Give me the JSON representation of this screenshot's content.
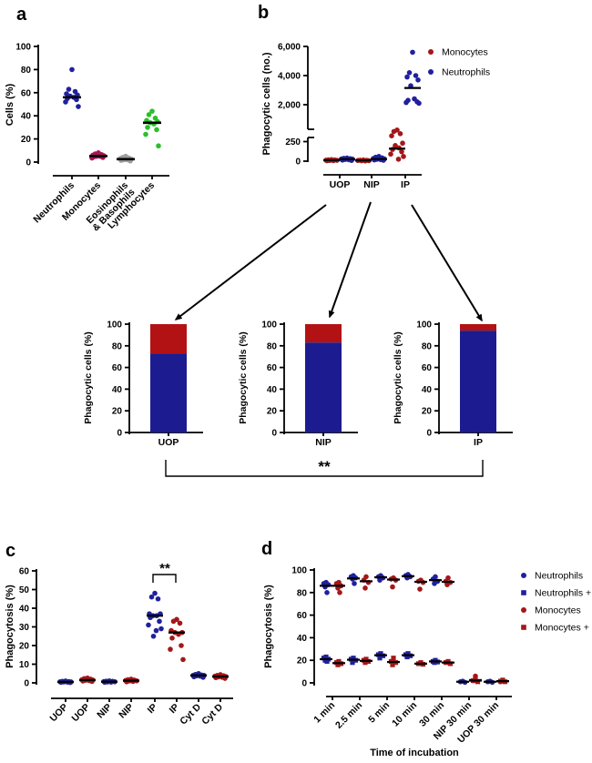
{
  "figure_labels": {
    "a": "a",
    "b": "b",
    "c": "c",
    "d": "d"
  },
  "colors": {
    "blue": "#20209e",
    "red": "#a41719",
    "magenta": "#aa1457",
    "gray": "#9d9d9d",
    "green": "#2abf2a",
    "bar_blue": "#1c1c90",
    "bar_red": "#b31215",
    "black": "#000000"
  },
  "chart_data": [
    {
      "id": "a",
      "type": "scatter",
      "ylabel": "Cells (%)",
      "ylim": [
        0,
        100
      ],
      "yticks": [
        0,
        20,
        40,
        60,
        80,
        100
      ],
      "categories": [
        "Neutrophils",
        "Monocytes",
        "Eosinophils\n& Basophils",
        "Lymphocytes"
      ],
      "groups": [
        {
          "label": "Neutrophils",
          "color": "blue",
          "marker": "circle",
          "values": [
            80,
            63,
            61,
            59,
            58,
            57,
            56,
            55,
            54,
            52,
            48
          ],
          "median": 56
        },
        {
          "label": "Monocytes",
          "color": "magenta",
          "marker": "circle",
          "values": [
            8,
            7,
            6.5,
            6,
            5.5,
            5,
            5,
            4.5,
            4,
            3.5
          ],
          "median": 5.2
        },
        {
          "label": "Eosinophils & Basophils",
          "color": "gray",
          "marker": "circle",
          "values": [
            5,
            4,
            3.5,
            3,
            2.5,
            2,
            2,
            1.5,
            1
          ],
          "median": 2.5
        },
        {
          "label": "Lymphocytes",
          "color": "green",
          "marker": "circle",
          "values": [
            44,
            41,
            38,
            36,
            35,
            34,
            33,
            30,
            28,
            24,
            14
          ],
          "median": 34
        }
      ]
    },
    {
      "id": "b",
      "type": "scatter_broken_axis",
      "ylabel": "Phagocytic cells (no.)",
      "yticks_upper": [
        {
          "v": 2000,
          "label": "2,000"
        },
        {
          "v": 4000,
          "label": "4,000"
        },
        {
          "v": 6000,
          "label": "6,000"
        }
      ],
      "yticks_lower": [
        {
          "v": 0,
          "label": "0"
        },
        {
          "v": 250,
          "label": "250"
        }
      ],
      "categories": [
        "UOP",
        "NIP",
        "IP"
      ],
      "legend": [
        {
          "label": "Monocytes",
          "color": "red",
          "marker": "circle"
        },
        {
          "label": "Neutrophils",
          "color": "blue",
          "marker": "circle"
        }
      ],
      "groups": [
        {
          "category": "UOP",
          "series": "Monocytes",
          "color": "red",
          "values": [
            5,
            7,
            9,
            11,
            13,
            15,
            17,
            20
          ],
          "median": 12
        },
        {
          "category": "UOP",
          "series": "Neutrophils",
          "color": "blue",
          "values": [
            10,
            14,
            18,
            22,
            25,
            28,
            32,
            36,
            40
          ],
          "median": 25
        },
        {
          "category": "NIP",
          "series": "Monocytes",
          "color": "red",
          "values": [
            3,
            5,
            7,
            9,
            11,
            13,
            15
          ],
          "median": 9
        },
        {
          "category": "NIP",
          "series": "Neutrophils",
          "color": "blue",
          "values": [
            12,
            16,
            20,
            24,
            28,
            34,
            42,
            50,
            60
          ],
          "median": 27
        },
        {
          "category": "IP",
          "series": "Monocytes",
          "color": "red",
          "values": [
            25,
            60,
            90,
            120,
            150,
            170,
            200,
            230,
            350,
            500,
            650,
            750
          ],
          "median": 160
        },
        {
          "category": "IP",
          "series": "Neutrophils",
          "color": "blue",
          "values": [
            2100,
            2150,
            2200,
            2300,
            2400,
            3300,
            3700,
            3900,
            4000,
            4200,
            5600
          ],
          "median": 3150
        }
      ]
    },
    {
      "id": "bars",
      "type": "stacked_bar",
      "ylabel": "Phagocytic cells (%)",
      "ylim": [
        0,
        100
      ],
      "yticks": [
        0,
        20,
        40,
        60,
        80,
        100
      ],
      "categories": [
        "UOP",
        "NIP",
        "IP"
      ],
      "series": [
        {
          "name": "Neutrophils",
          "color": "bar_blue",
          "values": [
            73,
            83,
            94
          ]
        },
        {
          "name": "Monocytes",
          "color": "bar_red",
          "values": [
            27,
            17,
            6
          ]
        }
      ],
      "significance": {
        "label": "**",
        "between": [
          "UOP",
          "IP"
        ]
      }
    },
    {
      "id": "c",
      "type": "scatter",
      "ylabel": "Phagocytosis (%)",
      "ylim": [
        0,
        60
      ],
      "yticks": [
        0,
        10,
        20,
        30,
        40,
        50,
        60
      ],
      "categories": [
        "UOP",
        "UOP",
        "NIP",
        "NIP",
        "IP",
        "IP",
        "Cyt D",
        "Cyt D"
      ],
      "significance": {
        "label": "**",
        "between": [
          "IP",
          "IP"
        ]
      },
      "groups": [
        {
          "category": "UOP",
          "color": "blue",
          "marker": "circle",
          "values": [
            0.2,
            0.3,
            0.4,
            0.5,
            0.5,
            0.6,
            0.7,
            0.8,
            1
          ],
          "median": 0.5
        },
        {
          "category": "UOP",
          "color": "red",
          "marker": "circle",
          "values": [
            0.8,
            1,
            1.2,
            1.4,
            1.5,
            1.7,
            2,
            2.3,
            2.6
          ],
          "median": 1.5
        },
        {
          "category": "NIP",
          "color": "blue",
          "marker": "circle",
          "values": [
            0.3,
            0.4,
            0.5,
            0.6,
            0.7,
            0.8,
            0.9,
            1.1
          ],
          "median": 0.65
        },
        {
          "category": "NIP",
          "color": "red",
          "marker": "circle",
          "values": [
            0.6,
            0.8,
            1,
            1.1,
            1.3,
            1.5,
            1.7,
            2
          ],
          "median": 1.2
        },
        {
          "category": "IP",
          "color": "blue",
          "marker": "circle",
          "values": [
            25,
            28,
            29,
            31,
            33,
            35,
            36,
            36,
            37,
            37,
            45,
            46,
            48
          ],
          "median": 36
        },
        {
          "category": "IP",
          "color": "red",
          "marker": "circle",
          "values": [
            12.5,
            18,
            20,
            24,
            26,
            27,
            27,
            28,
            32,
            33,
            34
          ],
          "median": 27
        },
        {
          "category": "Cyt D",
          "color": "blue",
          "marker": "circle",
          "values": [
            3,
            3.3,
            3.6,
            3.8,
            4,
            4,
            4.2,
            4.5,
            5
          ],
          "median": 4
        },
        {
          "category": "Cyt D",
          "color": "red",
          "marker": "circle",
          "values": [
            2.4,
            2.8,
            3,
            3.2,
            3.4,
            3.6,
            3.8,
            4,
            4.4
          ],
          "median": 3.4
        }
      ]
    },
    {
      "id": "d",
      "type": "scatter_by_time",
      "ylabel": "Phagocytosis (%)",
      "xlabel": "Time of incubation",
      "ylim": [
        0,
        100
      ],
      "yticks": [
        0,
        20,
        40,
        60,
        80,
        100
      ],
      "categories": [
        "1 min",
        "2.5 min",
        "5 min",
        "10 min",
        "30 min",
        "NIP 30 min",
        "UOP 30 min"
      ],
      "legend": [
        {
          "label": "Neutrophils",
          "color": "blue",
          "marker": "circle"
        },
        {
          "label": "Neutrophils + Cyt D",
          "color": "blue",
          "marker": "square"
        },
        {
          "label": "Monocytes",
          "color": "red",
          "marker": "circle"
        },
        {
          "label": "Monocytes + Cyt D",
          "color": "red",
          "marker": "square"
        }
      ],
      "series": [
        {
          "name": "Neutrophils",
          "color": "blue",
          "marker": "circle",
          "values": [
            [
              80,
              85,
              87,
              88,
              89
            ],
            [
              88,
              92,
              93,
              94,
              95
            ],
            [
              91,
              93,
              94,
              95
            ],
            [
              93,
              94,
              95,
              96
            ],
            [
              88,
              90,
              92,
              94
            ],
            [
              0.5,
              1,
              1.5
            ],
            [
              0.5,
              1,
              1.5
            ]
          ],
          "medians": [
            86,
            92.5,
            93.5,
            94.5,
            91,
            1,
            1
          ]
        },
        {
          "name": "Neutrophils + Cyt D",
          "color": "blue",
          "marker": "square",
          "values": [
            [
              19,
              20,
              21,
              22,
              23
            ],
            [
              18,
              20,
              21,
              22
            ],
            [
              22,
              24,
              25,
              26
            ],
            [
              23,
              24,
              25,
              26
            ],
            [
              18,
              18.5,
              19,
              20
            ],
            [],
            []
          ],
          "medians": [
            21,
            20.5,
            24.5,
            24.5,
            19,
            null,
            null
          ]
        },
        {
          "name": "Monocytes",
          "color": "red",
          "marker": "circle",
          "values": [
            [
              80,
              84,
              86,
              88,
              89
            ],
            [
              84,
              89,
              91,
              94
            ],
            [
              85,
              91,
              92,
              93
            ],
            [
              83,
              89,
              90,
              91
            ],
            [
              87,
              89,
              90,
              93
            ],
            [
              2,
              6
            ],
            [
              1,
              2
            ]
          ],
          "medians": [
            86,
            90,
            91.5,
            89.5,
            89.5,
            2.5,
            1.5
          ]
        },
        {
          "name": "Monocytes + Cyt D",
          "color": "red",
          "marker": "square",
          "values": [
            [
              16,
              17,
              18,
              19
            ],
            [
              18,
              19,
              20,
              21
            ],
            [
              16,
              18,
              19,
              22
            ],
            [
              16.5,
              17,
              18
            ],
            [
              17,
              18,
              19
            ],
            [
              1,
              2,
              3
            ],
            [
              1,
              1.5,
              2.5
            ]
          ],
          "medians": [
            17.5,
            19.5,
            18.5,
            17,
            18,
            2,
            1.5
          ]
        }
      ]
    }
  ]
}
